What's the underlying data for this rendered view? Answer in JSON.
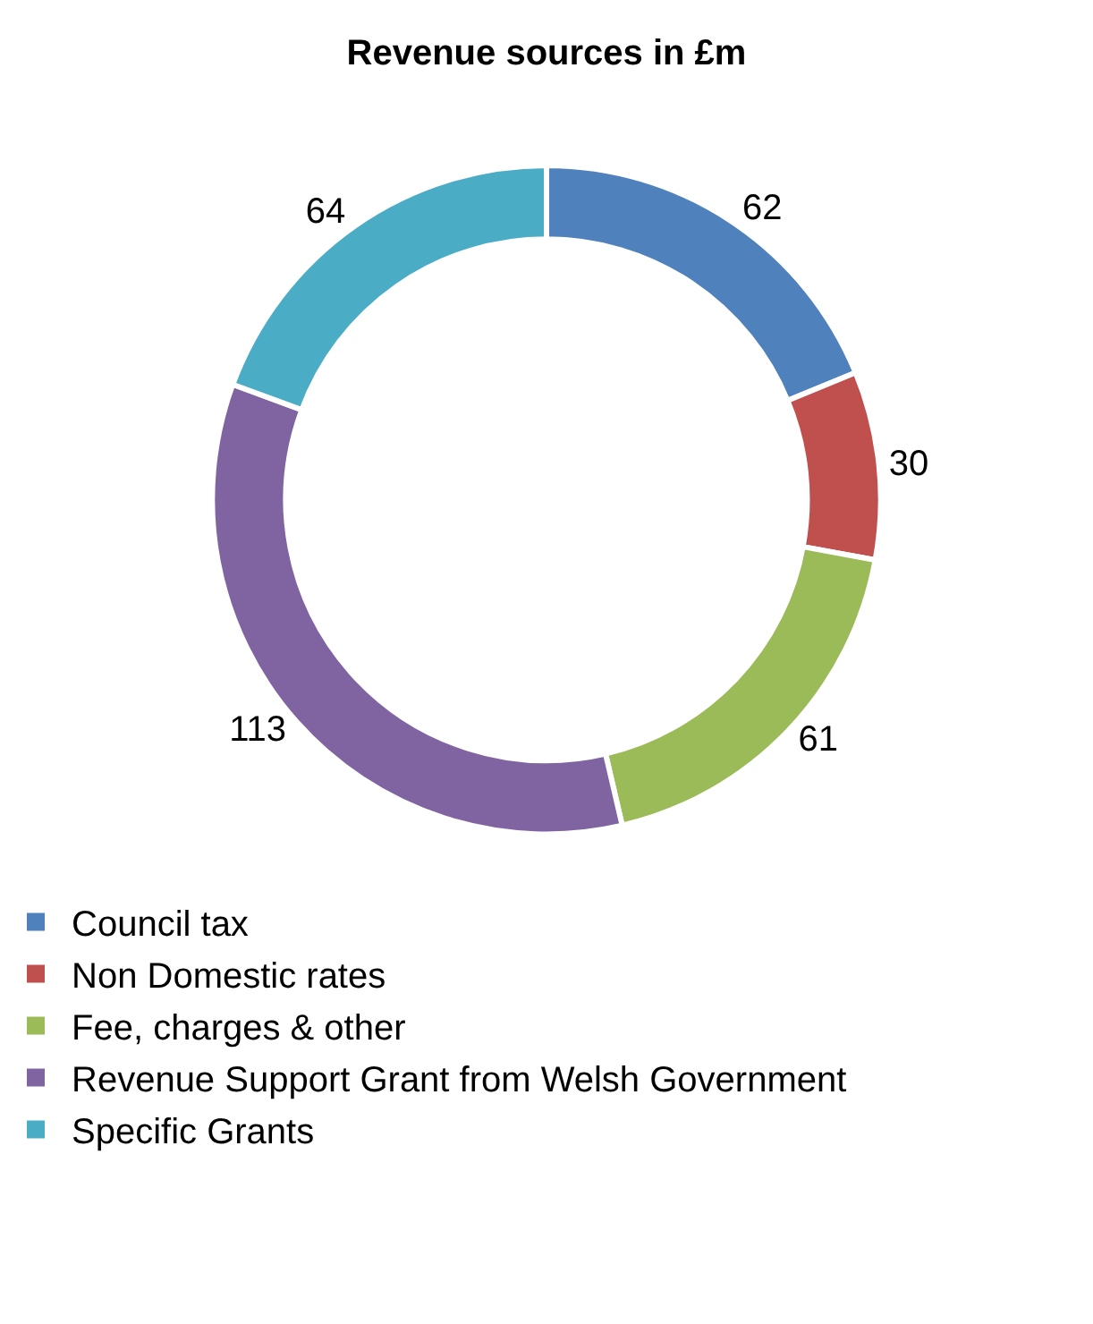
{
  "chart_data": {
    "type": "donut",
    "title": "Revenue sources in £m",
    "categories": [
      "Council tax",
      "Non Domestic rates",
      "Fee, charges & other",
      "Revenue Support Grant from Welsh Government",
      "Specific Grants"
    ],
    "values": [
      62,
      30,
      61,
      113,
      64
    ],
    "colors": [
      "#4f81bd",
      "#c0504d",
      "#9bbb59",
      "#8064a2",
      "#4bacc6"
    ],
    "data_labels": true,
    "legend": "bottom"
  }
}
